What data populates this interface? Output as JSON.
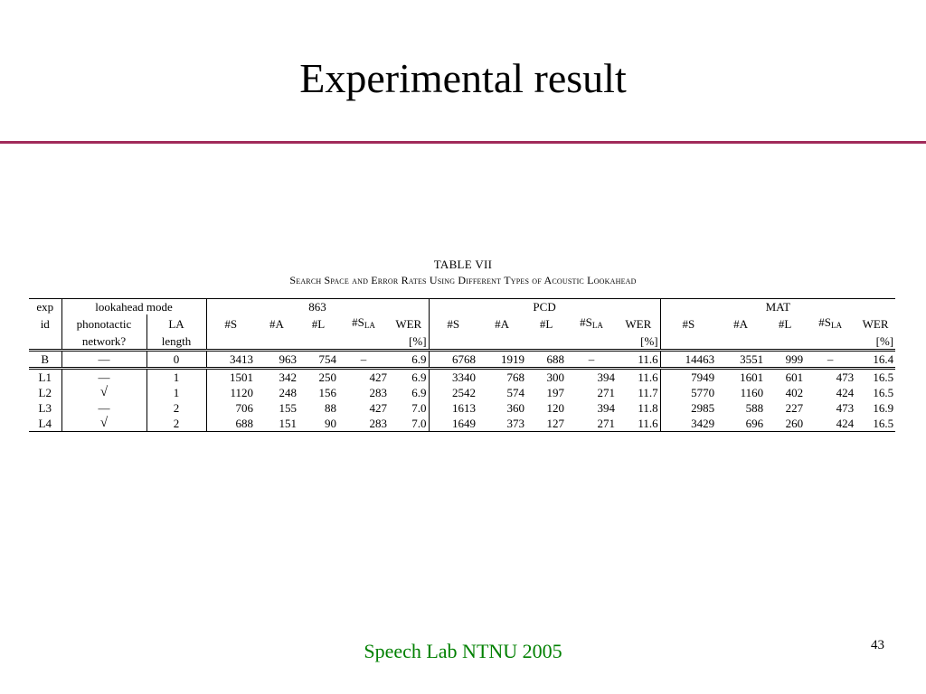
{
  "slide": {
    "title": "Experimental result",
    "footer": "Speech Lab NTNU 2005",
    "page_number": "43"
  },
  "table": {
    "label": "TABLE   VII",
    "caption": "Search Space and Error Rates Using Different Types of Acoustic Lookahead",
    "header": {
      "exp": "exp",
      "id": "id",
      "lookahead_mode": "lookahead mode",
      "phonotactic": "phonotactic",
      "network": "network?",
      "la": "LA",
      "length": "length",
      "groups": [
        "863",
        "PCD",
        "MAT"
      ],
      "s": "#S",
      "a": "#A",
      "l": "#L",
      "sla_main": "#S",
      "sla_sub": "LA",
      "wer": "WER",
      "wer_unit": "[%]"
    },
    "rows": [
      {
        "id": "B",
        "net": "—",
        "len": "0",
        "v": [
          "3413",
          "963",
          "754",
          "–",
          "6.9",
          "6768",
          "1919",
          "688",
          "–",
          "11.6",
          "14463",
          "3551",
          "999",
          "–",
          "16.4"
        ]
      },
      {
        "id": "L1",
        "net": "—",
        "len": "1",
        "v": [
          "1501",
          "342",
          "250",
          "427",
          "6.9",
          "3340",
          "768",
          "300",
          "394",
          "11.6",
          "7949",
          "1601",
          "601",
          "473",
          "16.5"
        ]
      },
      {
        "id": "L2",
        "net": "√",
        "len": "1",
        "v": [
          "1120",
          "248",
          "156",
          "283",
          "6.9",
          "2542",
          "574",
          "197",
          "271",
          "11.7",
          "5770",
          "1160",
          "402",
          "424",
          "16.5"
        ]
      },
      {
        "id": "L3",
        "net": "—",
        "len": "2",
        "v": [
          "706",
          "155",
          "88",
          "427",
          "7.0",
          "1613",
          "360",
          "120",
          "394",
          "11.8",
          "2985",
          "588",
          "227",
          "473",
          "16.9"
        ]
      },
      {
        "id": "L4",
        "net": "√",
        "len": "2",
        "v": [
          "688",
          "151",
          "90",
          "283",
          "7.0",
          "1649",
          "373",
          "127",
          "271",
          "11.6",
          "3429",
          "696",
          "260",
          "424",
          "16.5"
        ]
      }
    ]
  },
  "colors": {
    "divider": "#a02a5a",
    "footer": "#008000"
  }
}
